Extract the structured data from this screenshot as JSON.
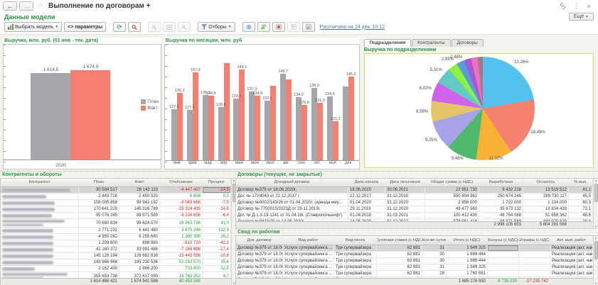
{
  "colors": {
    "title_green": "#2e9146",
    "link_blue": "#4a76a8",
    "plan_gray": "#a6a6ad",
    "fact_salmon": "#f5806f",
    "negative_red": "#cc2222",
    "positive_green": "#1e9e40"
  },
  "window": {
    "title": "Выполнение по договорам +",
    "back": "←",
    "forward": "→",
    "close": "×",
    "kebab": "⋮",
    "star": "☆"
  },
  "header": {
    "section_title": "Данные модели",
    "more_label": "Ещё"
  },
  "toolbar": {
    "select_model_label": "Выбрать модель",
    "parameters_label": "<> параметры",
    "filters_label": "Отборы",
    "calculated_link": "Рассчитано на 24 дек. 10:12"
  },
  "revenue_chart": {
    "title": "Выручка, млн. руб. (01 янв - тек. дата)",
    "chart_data": {
      "type": "bar",
      "categories": [
        "2020"
      ],
      "series": [
        {
          "name": "План",
          "value": 1614.5,
          "value_label": "1 614,5",
          "color": "#a6a6ad"
        },
        {
          "name": "Факт",
          "value": 1674.9,
          "value_label": "1 674,9",
          "color": "#f5806f"
        }
      ],
      "legend": [
        "План",
        "Факт"
      ],
      "ylim": [
        0,
        2070
      ]
    }
  },
  "monthly_chart": {
    "title": "Выручка по месяцам, млн. руб",
    "chart_data": {
      "type": "bar",
      "categories": [
        "янв",
        "фев",
        "мар",
        "апр",
        "май",
        "июн",
        "июл",
        "авг",
        "сен",
        "окт",
        "ноя",
        "дек"
      ],
      "series": [
        {
          "name": "План",
          "color": "#a6a6ad",
          "values": [
            127.6,
            127.2,
            135.1,
            128.8,
            133.4,
            137.3,
            132.1,
            146.7,
            134.0,
            138.9,
            134.5,
            139.9
          ],
          "labels": [
            "127,6",
            "127,2",
            "135,1",
            "128,8",
            "133,4",
            "137,3",
            "132,1",
            "146,7",
            "134,0",
            "138,9",
            "134,5",
            ""
          ]
        },
        {
          "name": "Факт",
          "color": "#f5806f",
          "values": [
            136.2,
            147.3,
            134.8,
            152.3,
            149.1,
            134.8,
            140.3,
            143.5,
            129.8,
            131.0,
            121.1,
            145.0
          ],
          "labels": [
            "136,2",
            "147,3",
            "134,8",
            "",
            "149,1",
            "134,8",
            "",
            "",
            "129,8",
            "131,0",
            "121,1",
            "145,0"
          ]
        }
      ],
      "ylim": [
        100,
        157
      ]
    }
  },
  "pie_panel": {
    "tabs": [
      "Подразделения",
      "Контрагенты",
      "Договоры"
    ],
    "active_tab": 0,
    "title": "Выручка по подразделениям",
    "chart_data": {
      "type": "pie",
      "slices": [
        {
          "label": "22,26%",
          "value": 22.26,
          "color": "#55c1ef"
        },
        {
          "label": "18,49%",
          "value": 18.49,
          "color": "#f5826e"
        },
        {
          "label": "11,32%",
          "value": 11.32,
          "color": "#f9b234"
        },
        {
          "label": "9,48%",
          "value": 9.48,
          "color": "#4eb86b"
        },
        {
          "label": "9,25%",
          "value": 9.25,
          "color": "#a8a2e9"
        },
        {
          "label": "6,56%",
          "value": 6.56,
          "color": "#e2c469"
        },
        {
          "label": "6,02%",
          "value": 6.02,
          "color": "#cf63e9"
        },
        {
          "label": "5,31%",
          "value": 5.31,
          "color": "#63c9c1"
        },
        {
          "label": "2,93%",
          "value": 2.93,
          "color": "#8ef23e"
        },
        {
          "label": "2,48%",
          "value": 2.48,
          "color": "#5b9bd9"
        },
        {
          "label": "",
          "value": 2.2,
          "color": "#a05ad6"
        },
        {
          "label": "",
          "value": 2.1,
          "color": "#ef6fc0"
        },
        {
          "label": "",
          "value": 1.6,
          "color": "#9e7b85"
        }
      ]
    }
  },
  "contractors_table": {
    "title": "Контрагенты и обороты",
    "columns": [
      "Контрагент",
      "План",
      "Факт",
      "Отклонение",
      "Процент"
    ],
    "name_redacted": true,
    "rows": [
      {
        "plan": "30 589 517",
        "fact": "26 142 110",
        "delta": "-4 447 407",
        "pct": "-14,5",
        "selected": true,
        "name_lines": 1
      },
      {
        "plan": "2 443 716",
        "fact": "2 450 520",
        "delta": "6 804",
        "pct": "0,3",
        "name_lines": 1
      },
      {
        "plan": "108 005 858",
        "fact": "99 942 192",
        "delta": "-8 063 666",
        "pct": "-7,5",
        "name_lines": 1
      },
      {
        "plan": "170 641 228",
        "fact": "145 316 789",
        "delta": "-25 324 439",
        "pct": "-14,8",
        "name_lines": 1
      },
      {
        "plan": "95 076 245",
        "fact": "88 971 589",
        "delta": "-6 104 656",
        "pct": "-6,4",
        "name_lines": 1
      },
      {
        "plan": "70 660 834",
        "fact": "99 624 570",
        "delta": "28 963 736",
        "pct": "41,0",
        "name_lines": 2
      },
      {
        "plan": "2 771 232",
        "fact": "6 441 480",
        "delta": "3 670 248",
        "pct": "132,4",
        "name_lines": 1
      },
      {
        "plan": "4 955 282",
        "fact": "6 255 680",
        "delta": "1 300 398",
        "pct": "26,2",
        "name_lines": 1
      },
      {
        "plan": "1 209 600",
        "fact": "698 880",
        "delta": "-510 720",
        "pct": "-42,2",
        "name_lines": 1
      },
      {
        "plan": "41 160 372",
        "fact": "33 991 486",
        "delta": "-7 168 886",
        "pct": "-17,4",
        "name_lines": 1
      },
      {
        "plan": "145 126 194",
        "fact": "129 682 638",
        "delta": "-15 443 556",
        "pct": "-10,6",
        "name_lines": 1
      },
      {
        "plan": "143 966 966",
        "fact": "195 230 536",
        "delta": "51 263 570",
        "pct": "35,6",
        "name_lines": 1
      },
      {
        "plan": "2 162 400",
        "fact": "2 866 200",
        "delta": "703 800",
        "pct": "32,5",
        "name_lines": 1
      },
      {
        "plan": "355 853 738",
        "fact": "372 617 090",
        "delta": "16 763 352",
        "pct": "4,7",
        "name_lines": 2
      }
    ],
    "totals": {
      "plan": "1 614 488 421",
      "fact": "1 674 941 586",
      "delta": "60 453 165"
    }
  },
  "contracts_table": {
    "title": "Договоры (текущие, не закрытые)",
    "columns": [
      "Доходный договор",
      "Дата начала",
      "Дата окончания",
      "Общая сумма (с НДС)",
      "Выработано",
      "Осталось",
      "% вып."
    ],
    "rows": [
      {
        "name": "Договор №379 от 18.06.2020г.",
        "start": "18.06.2020",
        "end": "30.06.2021",
        "sum": "22 951 730",
        "done": "9 432 218",
        "left": "13 519 512",
        "pct": "41,1",
        "selected": true
      },
      {
        "name": "Дог. № 17У4043 от 22.12.2017 г.",
        "start": "22.12.2017",
        "end": "31.12.2020",
        "sum": "550 404 362",
        "done": "250 674 245",
        "left": "299 730 117",
        "pct": "45,5"
      },
      {
        "name": "Договор №0002/143/26 от 01.04.2020г. (аренда иму...",
        "start": "01.04.2020",
        "end": "31.12.2020",
        "sum": "2 856 000",
        "done": "1 722 000",
        "left": "1 134 000",
        "pct": "60,3"
      },
      {
        "name": "Договор № 7700015/3323Д от 29.11.2019г.",
        "start": "29.11.2019",
        "end": "31.12.2020",
        "sum": "49 477 560",
        "done": "35 673 132",
        "left": "13 804 428",
        "pct": "72,1"
      },
      {
        "name": "Дог. № Д-1.3-19-1141 от 01.04.18г.  (Ставропольнефт)",
        "start": "01.04.2018",
        "end": "31.03.2021",
        "sum": "100 412 430",
        "done": "48 754 068",
        "left": "51 658 362",
        "pct": "48,6"
      },
      {
        "name": "Договор №0823/20 от 14.05.2020г.",
        "start": "14.05.2020",
        "end": "31.12.2022",
        "sum": "578 951 418",
        "done": "88 971 589",
        "left": "489 979 829",
        "pct": "15,4"
      }
    ],
    "totals": {
      "done": "2 998 105 653",
      "left": "5 804 291 068"
    }
  },
  "works_table": {
    "title": "Свод по работам",
    "columns": [
      "Док. договор",
      "Вид работ",
      "Вид поста",
      "Суточная ставка (с НДС)",
      "Кол-во суток",
      "Итого (с НДС)",
      "Бонусы (с НДС)",
      "Штрафы (с НДС)",
      "Акт. вып. работ"
    ],
    "rows": [
      {
        "doc": "Договор №379 от 18.06...",
        "work": "Услуги супервайзинга ...",
        "post": "Три супервайзера",
        "rate": "62 881",
        "days": "31",
        "total": "1 949 325",
        "bonus": "",
        "fine": "",
        "act": "Реализация (акт, накла...",
        "selected": true
      },
      {
        "doc": "Договор №379 от 18.06...",
        "work": "Услуги супервайзинга ...",
        "post": "Три супервайзера",
        "rate": "62 881",
        "days": "30",
        "total": "1 886 444",
        "bonus": "",
        "fine": "",
        "act": "Реализация (акт, накла..."
      },
      {
        "doc": "Договор №379 от 18.06...",
        "work": "Услуги супервайзинга ...",
        "post": "Три супервайзера",
        "rate": "62 881",
        "days": "30",
        "total": "1 886 444",
        "bonus": "",
        "fine": "",
        "act": "Реализация (акт, накла..."
      },
      {
        "doc": "Договор №379 от 18.06...",
        "work": "Услуги супервайзинга ...",
        "post": "Три супервайзера",
        "rate": "62 881",
        "days": "31",
        "total": "1 949 325",
        "bonus": "",
        "fine": "",
        "act": "Реализация (акт, накла..."
      },
      {
        "doc": "Договор №379 от 18.06...",
        "work": "Услуги супервайзинга ...",
        "post": "Три супервайзера",
        "rate": "62 881",
        "days": "28",
        "total": "1 760 681",
        "bonus": "",
        "fine": "",
        "act": "Реализация (акт, накла..."
      },
      {
        "doc": "Дог. № 17У4043 от 22...",
        "work": "Услуги супервайзинга ...",
        "post": "Два супервайзера",
        "rate": "21 560",
        "days": "10",
        "total": "215 604",
        "bonus": "",
        "fine": "",
        "act": "Реализация (акт, накла..."
      }
    ],
    "totals": {
      "total": "1 685 178 930",
      "bonus": "8 735 230",
      "fine": "-17 235 742"
    }
  }
}
